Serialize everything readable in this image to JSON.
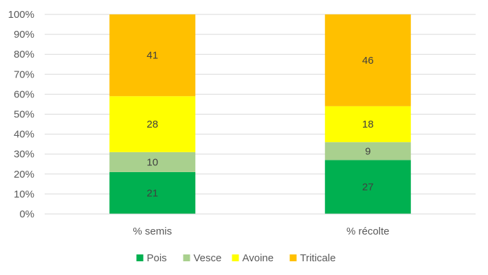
{
  "chart_data": {
    "type": "bar",
    "stacked": true,
    "categories": [
      "% semis",
      "% récolte"
    ],
    "series": [
      {
        "name": "Pois",
        "color": "#00b050",
        "values": [
          21,
          27
        ]
      },
      {
        "name": "Vesce",
        "color": "#a9d08e",
        "values": [
          10,
          9
        ]
      },
      {
        "name": "Avoine",
        "color": "#ffff00",
        "values": [
          28,
          18
        ]
      },
      {
        "name": "Triticale",
        "color": "#ffc000",
        "values": [
          41,
          46
        ]
      }
    ],
    "ylim": [
      0,
      100
    ],
    "yticks": [
      "0%",
      "10%",
      "20%",
      "30%",
      "40%",
      "50%",
      "60%",
      "70%",
      "80%",
      "90%",
      "100%"
    ],
    "grid": true,
    "legend": "bottom",
    "data_labels": true
  }
}
